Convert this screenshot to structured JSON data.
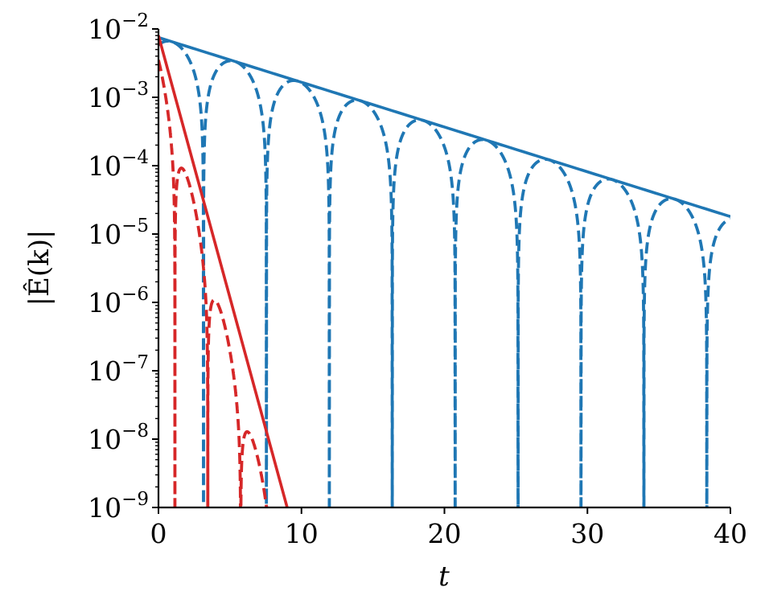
{
  "chart_data": {
    "type": "line",
    "title": "",
    "xlabel": "t",
    "ylabel": "|Ê(k)|",
    "xlim": [
      0,
      40
    ],
    "ylim": [
      1e-09,
      0.01
    ],
    "yscale": "log",
    "grid": false,
    "x_ticks": [
      0,
      10,
      20,
      30,
      40
    ],
    "x_tick_labels": [
      "0",
      "10",
      "20",
      "30",
      "40"
    ],
    "y_ticks": [
      0.01,
      0.001,
      0.0001,
      1e-05,
      1e-06,
      1e-07,
      1e-08,
      1e-09
    ],
    "y_tick_labels": [
      {
        "base": "10",
        "exp": "−2"
      },
      {
        "base": "10",
        "exp": "−3"
      },
      {
        "base": "10",
        "exp": "−4"
      },
      {
        "base": "10",
        "exp": "−5"
      },
      {
        "base": "10",
        "exp": "−6"
      },
      {
        "base": "10",
        "exp": "−7"
      },
      {
        "base": "10",
        "exp": "−8"
      },
      {
        "base": "10",
        "exp": "−9"
      }
    ],
    "series": [
      {
        "id": "blue-envelope",
        "style": "solid",
        "color": "#1f77b4",
        "x": [
          0,
          40
        ],
        "y": [
          0.0075,
          1.8e-05
        ]
      },
      {
        "id": "blue-oscillation",
        "style": "dashed",
        "color": "#1f77b4",
        "amplitude0": 0.0075,
        "amplitude40": 1.8e-05,
        "period": 4.4,
        "phase": 1.25,
        "x_start": 0,
        "x_end": 40,
        "floor": 1e-09
      },
      {
        "id": "red-envelope",
        "style": "solid",
        "color": "#d62728",
        "x": [
          0,
          9
        ],
        "y": [
          0.008,
          1e-09
        ]
      },
      {
        "id": "red-oscillation",
        "style": "dashed",
        "color": "#d62728",
        "amplitude0": 0.0035,
        "amplitude9": 1e-10,
        "period": 2.3,
        "phase": 1.15,
        "x_start": 0,
        "x_end": 8,
        "floor": 1e-09
      }
    ]
  }
}
